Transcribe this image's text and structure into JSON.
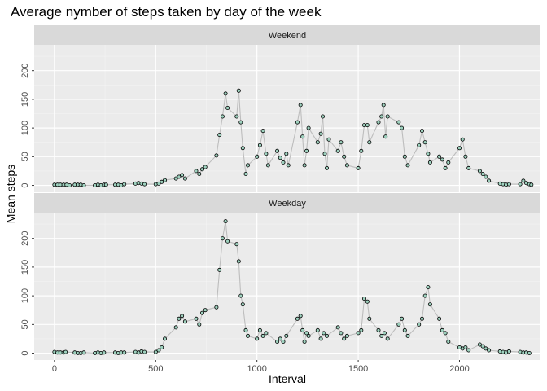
{
  "chart_data": {
    "type": "scatter",
    "title": "Average nymber of steps taken by day of the week",
    "xlabel": "Interval",
    "ylabel": "Mean steps",
    "xlim": [
      -100,
      2400
    ],
    "ylim": [
      -12,
      245
    ],
    "x_ticks": [
      0,
      500,
      1000,
      1500,
      2000
    ],
    "y_ticks": [
      0,
      50,
      100,
      150,
      200
    ],
    "grid": true,
    "line_color": "#bdbdbd",
    "point_fill": "#9ed1be",
    "point_stroke": "#000000",
    "panel_bg": "#ebebeb",
    "strip_bg": "#d9d9d9",
    "facets": [
      {
        "label": "Weekend",
        "points": [
          [
            0,
            1
          ],
          [
            15,
            1
          ],
          [
            30,
            1
          ],
          [
            45,
            1
          ],
          [
            60,
            1
          ],
          [
            75,
            0
          ],
          [
            100,
            1
          ],
          [
            115,
            1
          ],
          [
            130,
            1
          ],
          [
            145,
            0
          ],
          [
            200,
            0
          ],
          [
            215,
            1
          ],
          [
            230,
            0
          ],
          [
            245,
            1
          ],
          [
            255,
            1
          ],
          [
            300,
            1
          ],
          [
            315,
            1
          ],
          [
            330,
            0
          ],
          [
            345,
            2
          ],
          [
            400,
            3
          ],
          [
            415,
            4
          ],
          [
            430,
            3
          ],
          [
            445,
            2
          ],
          [
            500,
            2
          ],
          [
            515,
            3
          ],
          [
            530,
            6
          ],
          [
            545,
            9
          ],
          [
            600,
            12
          ],
          [
            615,
            15
          ],
          [
            630,
            18
          ],
          [
            645,
            12
          ],
          [
            700,
            25
          ],
          [
            715,
            20
          ],
          [
            730,
            28
          ],
          [
            745,
            32
          ],
          [
            800,
            52
          ],
          [
            815,
            88
          ],
          [
            830,
            120
          ],
          [
            845,
            160
          ],
          [
            855,
            135
          ],
          [
            900,
            120
          ],
          [
            910,
            165
          ],
          [
            920,
            110
          ],
          [
            930,
            65
          ],
          [
            945,
            20
          ],
          [
            955,
            35
          ],
          [
            1000,
            50
          ],
          [
            1015,
            70
          ],
          [
            1030,
            95
          ],
          [
            1045,
            55
          ],
          [
            1055,
            35
          ],
          [
            1100,
            60
          ],
          [
            1115,
            48
          ],
          [
            1130,
            40
          ],
          [
            1145,
            55
          ],
          [
            1155,
            35
          ],
          [
            1200,
            110
          ],
          [
            1215,
            140
          ],
          [
            1225,
            85
          ],
          [
            1235,
            35
          ],
          [
            1245,
            60
          ],
          [
            1255,
            100
          ],
          [
            1300,
            75
          ],
          [
            1315,
            90
          ],
          [
            1325,
            120
          ],
          [
            1335,
            55
          ],
          [
            1345,
            30
          ],
          [
            1355,
            80
          ],
          [
            1400,
            60
          ],
          [
            1415,
            75
          ],
          [
            1430,
            50
          ],
          [
            1445,
            35
          ],
          [
            1500,
            30
          ],
          [
            1515,
            60
          ],
          [
            1530,
            105
          ],
          [
            1545,
            105
          ],
          [
            1555,
            75
          ],
          [
            1600,
            110
          ],
          [
            1615,
            120
          ],
          [
            1625,
            140
          ],
          [
            1635,
            85
          ],
          [
            1645,
            120
          ],
          [
            1700,
            110
          ],
          [
            1715,
            100
          ],
          [
            1730,
            50
          ],
          [
            1745,
            35
          ],
          [
            1800,
            70
          ],
          [
            1815,
            95
          ],
          [
            1830,
            75
          ],
          [
            1845,
            55
          ],
          [
            1855,
            40
          ],
          [
            1900,
            50
          ],
          [
            1915,
            45
          ],
          [
            1930,
            30
          ],
          [
            1945,
            40
          ],
          [
            2000,
            65
          ],
          [
            2015,
            80
          ],
          [
            2030,
            50
          ],
          [
            2045,
            30
          ],
          [
            2100,
            25
          ],
          [
            2115,
            20
          ],
          [
            2130,
            15
          ],
          [
            2145,
            8
          ],
          [
            2200,
            3
          ],
          [
            2215,
            2
          ],
          [
            2230,
            1
          ],
          [
            2245,
            2
          ],
          [
            2300,
            2
          ],
          [
            2315,
            8
          ],
          [
            2330,
            4
          ],
          [
            2345,
            2
          ],
          [
            2355,
            1
          ]
        ]
      },
      {
        "label": "Weekday",
        "points": [
          [
            0,
            2
          ],
          [
            15,
            1
          ],
          [
            30,
            1
          ],
          [
            45,
            1
          ],
          [
            55,
            2
          ],
          [
            100,
            1
          ],
          [
            115,
            0
          ],
          [
            130,
            0
          ],
          [
            145,
            1
          ],
          [
            200,
            0
          ],
          [
            215,
            1
          ],
          [
            230,
            0
          ],
          [
            245,
            1
          ],
          [
            300,
            1
          ],
          [
            315,
            0
          ],
          [
            330,
            1
          ],
          [
            345,
            1
          ],
          [
            400,
            2
          ],
          [
            415,
            1
          ],
          [
            430,
            3
          ],
          [
            445,
            2
          ],
          [
            500,
            2
          ],
          [
            515,
            5
          ],
          [
            530,
            10
          ],
          [
            545,
            25
          ],
          [
            600,
            45
          ],
          [
            615,
            60
          ],
          [
            630,
            65
          ],
          [
            645,
            55
          ],
          [
            700,
            60
          ],
          [
            715,
            50
          ],
          [
            730,
            70
          ],
          [
            745,
            75
          ],
          [
            800,
            80
          ],
          [
            815,
            145
          ],
          [
            830,
            200
          ],
          [
            845,
            230
          ],
          [
            855,
            195
          ],
          [
            900,
            190
          ],
          [
            910,
            160
          ],
          [
            920,
            100
          ],
          [
            930,
            85
          ],
          [
            945,
            40
          ],
          [
            955,
            30
          ],
          [
            1000,
            25
          ],
          [
            1015,
            40
          ],
          [
            1030,
            30
          ],
          [
            1045,
            35
          ],
          [
            1100,
            20
          ],
          [
            1115,
            25
          ],
          [
            1130,
            20
          ],
          [
            1145,
            30
          ],
          [
            1200,
            60
          ],
          [
            1215,
            65
          ],
          [
            1225,
            40
          ],
          [
            1235,
            20
          ],
          [
            1245,
            35
          ],
          [
            1255,
            30
          ],
          [
            1300,
            40
          ],
          [
            1315,
            25
          ],
          [
            1330,
            35
          ],
          [
            1345,
            30
          ],
          [
            1400,
            45
          ],
          [
            1415,
            35
          ],
          [
            1430,
            25
          ],
          [
            1445,
            30
          ],
          [
            1500,
            35
          ],
          [
            1515,
            40
          ],
          [
            1530,
            95
          ],
          [
            1545,
            90
          ],
          [
            1555,
            60
          ],
          [
            1600,
            40
          ],
          [
            1615,
            30
          ],
          [
            1630,
            35
          ],
          [
            1645,
            25
          ],
          [
            1700,
            50
          ],
          [
            1715,
            60
          ],
          [
            1730,
            40
          ],
          [
            1745,
            30
          ],
          [
            1800,
            50
          ],
          [
            1815,
            60
          ],
          [
            1830,
            100
          ],
          [
            1845,
            115
          ],
          [
            1855,
            85
          ],
          [
            1900,
            60
          ],
          [
            1915,
            40
          ],
          [
            1930,
            35
          ],
          [
            1945,
            20
          ],
          [
            2000,
            10
          ],
          [
            2015,
            8
          ],
          [
            2030,
            10
          ],
          [
            2045,
            5
          ],
          [
            2100,
            15
          ],
          [
            2115,
            12
          ],
          [
            2130,
            8
          ],
          [
            2145,
            5
          ],
          [
            2200,
            3
          ],
          [
            2215,
            2
          ],
          [
            2230,
            1
          ],
          [
            2245,
            3
          ],
          [
            2300,
            2
          ],
          [
            2315,
            1
          ],
          [
            2330,
            1
          ],
          [
            2345,
            0
          ]
        ]
      }
    ]
  }
}
